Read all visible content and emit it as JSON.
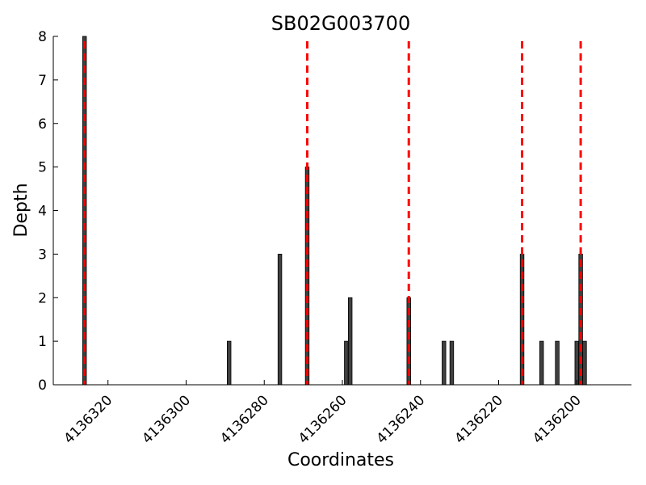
{
  "chart_data": {
    "type": "bar",
    "title": "SB02G003700",
    "xlabel": "Coordinates",
    "ylabel": "Depth",
    "x_reversed": true,
    "xlim": [
      4136334,
      4136186
    ],
    "ylim": [
      0,
      8
    ],
    "yticks": [
      0,
      1,
      2,
      3,
      4,
      5,
      6,
      7,
      8
    ],
    "xticks": [
      4136320,
      4136300,
      4136280,
      4136260,
      4136240,
      4136220,
      4136200
    ],
    "grid": false,
    "bar_color": "#404040",
    "marker_color": "#ff0000",
    "bars": [
      {
        "x": 4136326,
        "depth": 8
      },
      {
        "x": 4136289,
        "depth": 1
      },
      {
        "x": 4136276,
        "depth": 3
      },
      {
        "x": 4136269,
        "depth": 5
      },
      {
        "x": 4136259,
        "depth": 1
      },
      {
        "x": 4136258,
        "depth": 2
      },
      {
        "x": 4136243,
        "depth": 2
      },
      {
        "x": 4136234,
        "depth": 1
      },
      {
        "x": 4136232,
        "depth": 1
      },
      {
        "x": 4136214,
        "depth": 3
      },
      {
        "x": 4136209,
        "depth": 1
      },
      {
        "x": 4136205,
        "depth": 1
      },
      {
        "x": 4136200,
        "depth": 1
      },
      {
        "x": 4136199,
        "depth": 3
      },
      {
        "x": 4136198,
        "depth": 1
      }
    ],
    "dashed_markers": [
      4136326,
      4136269,
      4136243,
      4136214,
      4136199
    ]
  }
}
